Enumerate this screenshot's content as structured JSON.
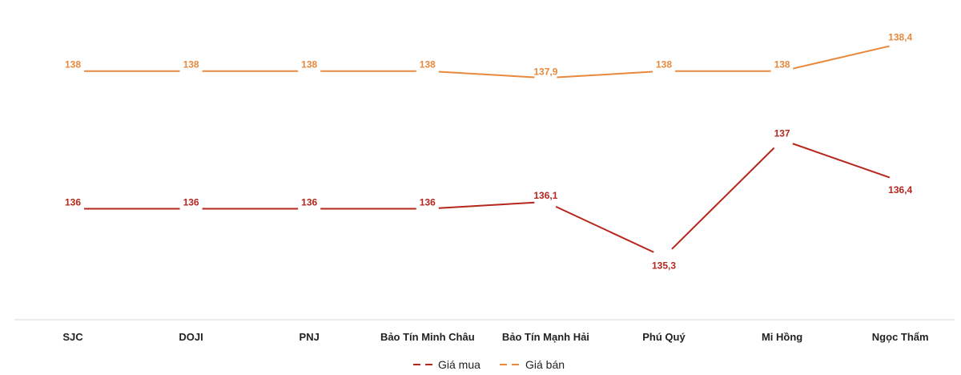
{
  "chart_data": {
    "type": "line",
    "categories": [
      "SJC",
      "DOJI",
      "PNJ",
      "Bảo Tín Minh Châu",
      "Bảo Tín Mạnh Hải",
      "Phú Quý",
      "Mi Hồng",
      "Ngọc Thẩm"
    ],
    "series": [
      {
        "name": "Giá mua",
        "color": "#b5271d",
        "values": [
          136,
          136,
          136,
          136,
          136.1,
          135.3,
          137,
          136.4
        ],
        "labels": [
          "136",
          "136",
          "136",
          "136",
          "136,1",
          "135,3",
          "137",
          "136,4"
        ]
      },
      {
        "name": "Giá bán",
        "color": "#e8893d",
        "values": [
          138,
          138,
          138,
          138,
          137.9,
          138,
          138,
          138.4
        ],
        "labels": [
          "138",
          "138",
          "138",
          "138",
          "137,9",
          "138",
          "138",
          "138,4"
        ]
      }
    ],
    "ylim": [
      134.4,
      138.8
    ],
    "grid": false,
    "legend_position": "bottom"
  }
}
